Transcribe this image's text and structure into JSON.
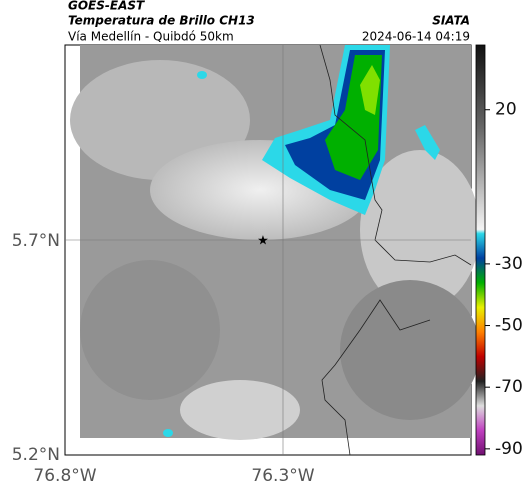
{
  "header": {
    "source": "GOES-EAST",
    "title": "Temperatura de Brillo CH13",
    "subtitle": "Vía Medellín - Quibdó 50km",
    "brand": "SIATA",
    "timestamp": "2024-06-14 04:19"
  },
  "map": {
    "lat_labels": [
      "5.7°N",
      "5.2°N"
    ],
    "lon_labels": [
      "76.8°W",
      "76.3°W"
    ]
  },
  "colorbar": {
    "ticks": [
      20,
      -30,
      -50,
      -70,
      -90
    ],
    "clim": [
      41,
      -92
    ]
  }
}
